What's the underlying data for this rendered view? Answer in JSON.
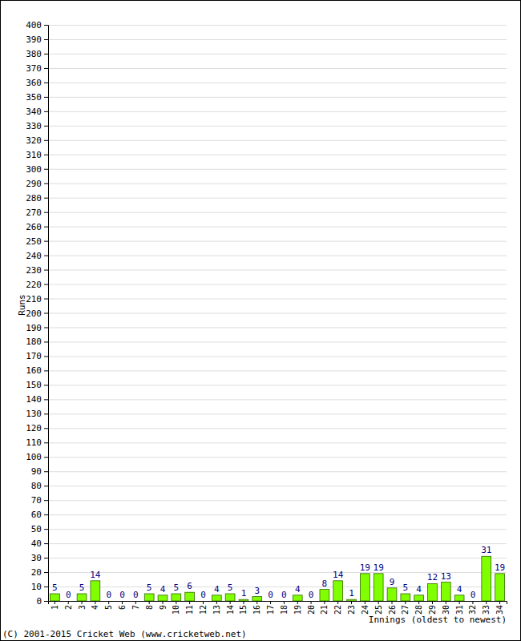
{
  "chart_data": {
    "type": "bar",
    "categories": [
      "1",
      "2",
      "3",
      "4",
      "5",
      "6",
      "7",
      "8",
      "9",
      "10",
      "11",
      "12",
      "13",
      "14",
      "15",
      "16",
      "17",
      "18",
      "19",
      "20",
      "21",
      "22",
      "23",
      "24",
      "25",
      "26",
      "27",
      "28",
      "29",
      "30",
      "31",
      "32",
      "33",
      "34"
    ],
    "values": [
      5,
      0,
      5,
      14,
      0,
      0,
      0,
      5,
      4,
      5,
      6,
      0,
      4,
      5,
      1,
      3,
      0,
      0,
      4,
      0,
      8,
      14,
      1,
      19,
      19,
      9,
      5,
      4,
      12,
      13,
      4,
      0,
      31,
      19
    ],
    "color": "#80ff00",
    "x_label": "Innings (oldest to newest)",
    "y_label": "Runs",
    "annotations": [
      "(C) 2001-2015 Cricket Web (www.cricketweb.net)"
    ],
    "ylim": [
      0,
      400
    ],
    "yticks": [
      0,
      10,
      20,
      30,
      40,
      50,
      60,
      70,
      80,
      90,
      100,
      110,
      120,
      130,
      140,
      150,
      160,
      170,
      180,
      190,
      200,
      210,
      220,
      230,
      240,
      250,
      260,
      270,
      280,
      290,
      300,
      310,
      320,
      330,
      340,
      350,
      360,
      370,
      380,
      390,
      400
    ],
    "grid": true,
    "data_labels": true
  }
}
